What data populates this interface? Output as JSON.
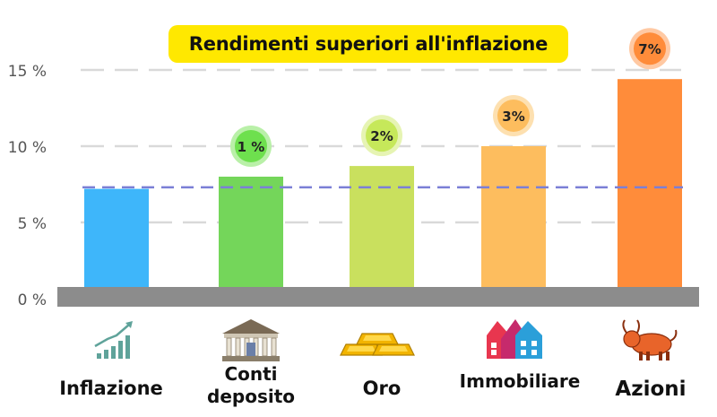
{
  "title": "Rendimenti superiori all'inflazione",
  "colors": {
    "background": "#ffffff",
    "title_bg": "#ffe800",
    "grid": "#d9d9d9",
    "baseline_bar": "#8c8c8c",
    "reference_line": "#7b7fd6",
    "axis_text": "#555555"
  },
  "chart_data": {
    "type": "bar",
    "title": "Rendimenti superiori all'inflazione",
    "xlabel": "",
    "ylabel": "",
    "ylim": [
      0,
      15
    ],
    "yticks": [
      0,
      5,
      10,
      15
    ],
    "ytick_labels": [
      "0 %",
      "5 %",
      "10 %",
      "15 %"
    ],
    "grid": true,
    "categories": [
      "Inflazione",
      "Conti deposito",
      "Oro",
      "Immobiliare",
      "Azioni"
    ],
    "values": [
      7.2,
      8.0,
      8.7,
      10.0,
      14.4
    ],
    "bar_colors": [
      "#3eb6fa",
      "#74d65a",
      "#c9e05e",
      "#fdbd5e",
      "#ff8c3a"
    ],
    "badges": [
      {
        "category": "Conti deposito",
        "label": "1 %",
        "color": "#6ee04e",
        "ring": "#b9f0a8"
      },
      {
        "category": "Oro",
        "label": "2%",
        "color": "#c6e85a",
        "ring": "#e6f4b3"
      },
      {
        "category": "Immobiliare",
        "label": "3%",
        "color": "#fdbd5e",
        "ring": "#fde0b0"
      },
      {
        "category": "Azioni",
        "label": "7%",
        "color": "#ff8c3a",
        "ring": "#ffc9a3"
      }
    ],
    "reference_line": {
      "value": 7.3,
      "style": "dashed"
    },
    "icons": [
      "growth-chart-icon",
      "bank-icon",
      "gold-bars-icon",
      "houses-icon",
      "bull-icon"
    ]
  }
}
